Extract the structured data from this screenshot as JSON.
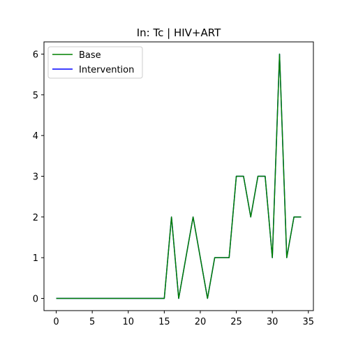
{
  "chart_data": {
    "type": "line",
    "title": "In: Tc | HIV+ART",
    "xlabel": "",
    "ylabel": "",
    "xlim": [
      -1.7,
      35.7
    ],
    "ylim": [
      -0.3,
      6.3
    ],
    "xticks": [
      0,
      5,
      10,
      15,
      20,
      25,
      30,
      35
    ],
    "yticks": [
      0,
      1,
      2,
      3,
      4,
      5,
      6
    ],
    "grid": false,
    "legend_position": "top-left",
    "x": [
      0,
      1,
      2,
      3,
      4,
      5,
      6,
      7,
      8,
      9,
      10,
      11,
      12,
      13,
      14,
      15,
      16,
      17,
      18,
      19,
      20,
      21,
      22,
      23,
      24,
      25,
      26,
      27,
      28,
      29,
      30,
      31,
      32,
      33,
      34
    ],
    "series": [
      {
        "name": "Base",
        "color": "#008000",
        "values": [
          0,
          0,
          0,
          0,
          0,
          0,
          0,
          0,
          0,
          0,
          0,
          0,
          0,
          0,
          0,
          0,
          2,
          0,
          1,
          2,
          1,
          0,
          1,
          1,
          1,
          3,
          3,
          2,
          3,
          3,
          1,
          6,
          1,
          2,
          2
        ]
      },
      {
        "name": "Intervention",
        "color": "#0000ff",
        "values": [
          0,
          0,
          0,
          0,
          0,
          0,
          0,
          0,
          0,
          0,
          0,
          0,
          0,
          0,
          0,
          0,
          2,
          0,
          1,
          2,
          1,
          0,
          1,
          1,
          1,
          3,
          3,
          2,
          3,
          3,
          1,
          6,
          1,
          2,
          2
        ]
      }
    ]
  }
}
